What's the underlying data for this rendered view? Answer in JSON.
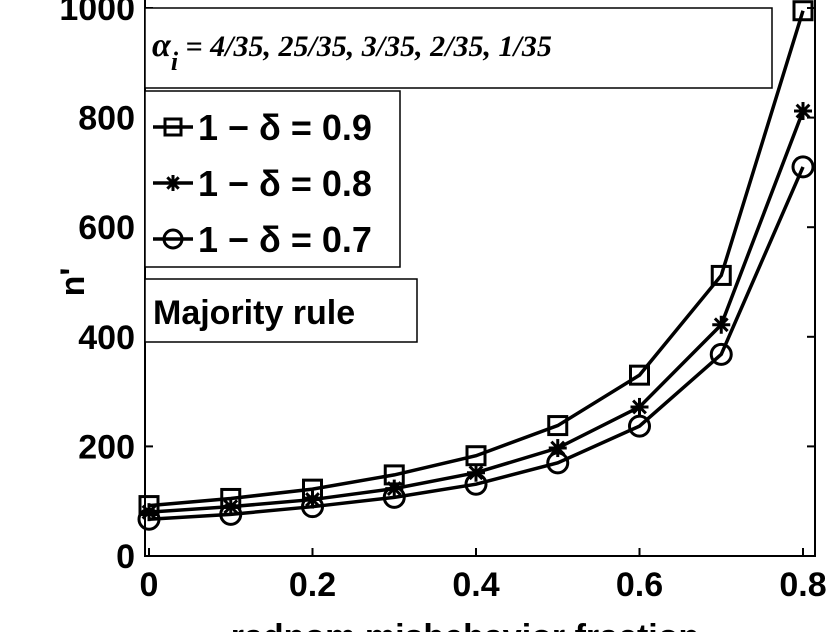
{
  "chart_data": {
    "type": "line",
    "title": "",
    "xlabel": "radnom misbehavior fraction",
    "ylabel": "n'",
    "xlim": [
      0,
      0.8
    ],
    "ylim": [
      0,
      1000
    ],
    "x": [
      0,
      0.1,
      0.2,
      0.3,
      0.4,
      0.5,
      0.6,
      0.7,
      0.8
    ],
    "x_ticks": [
      "0",
      "0.2",
      "0.4",
      "0.6",
      "0.8"
    ],
    "y_ticks": [
      "0",
      "200",
      "400",
      "600",
      "800",
      "1000"
    ],
    "grid": false,
    "legend_position": "top-left",
    "series": [
      {
        "name": "1 − δ = 0.9",
        "marker": "square",
        "values": [
          92,
          105,
          122,
          148,
          183,
          238,
          330,
          512,
          995
        ]
      },
      {
        "name": "1 − δ = 0.8",
        "marker": "star",
        "values": [
          80,
          90,
          103,
          123,
          152,
          197,
          272,
          422,
          812
        ]
      },
      {
        "name": "1 − δ = 0.7",
        "marker": "circle",
        "values": [
          67,
          76,
          90,
          107,
          131,
          170,
          237,
          368,
          710
        ]
      }
    ],
    "annotations": [
      "αi = 4/35, 25/35, 3/35, 2/35, 1/35",
      "Majority rule"
    ],
    "line_color": "#000000"
  }
}
